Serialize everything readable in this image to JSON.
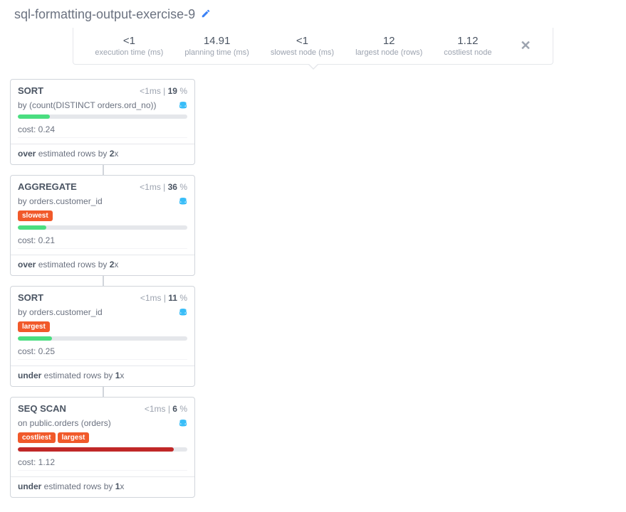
{
  "header": {
    "title": "sql-formatting-output-exercise-9",
    "stats": [
      {
        "value": "<1",
        "label": "execution time (ms)"
      },
      {
        "value": "14.91",
        "label": "planning time (ms)"
      },
      {
        "value": "<1",
        "label": "slowest node (ms)"
      },
      {
        "value": "12",
        "label": "largest node (rows)"
      },
      {
        "value": "1.12",
        "label": "costliest node"
      }
    ]
  },
  "nodes": [
    {
      "title": "SORT",
      "time": "<1",
      "time_unit": "ms",
      "pct": "19",
      "subtitle_prefix": "by",
      "subtitle": "(count(DISTINCT orders.ord_no))",
      "badges": [],
      "progress_pct": 19,
      "progress_color": "#4ade80",
      "cost_label": "cost:",
      "cost": "0.24",
      "estimate_prefix": "over",
      "estimate_mid": "estimated rows by",
      "estimate_factor": "2",
      "estimate_suffix": "x"
    },
    {
      "title": "AGGREGATE",
      "time": "<1",
      "time_unit": "ms",
      "pct": "36",
      "subtitle_prefix": "by",
      "subtitle": "orders.customer_id",
      "badges": [
        "slowest"
      ],
      "progress_pct": 17,
      "progress_color": "#4ade80",
      "cost_label": "cost:",
      "cost": "0.21",
      "estimate_prefix": "over",
      "estimate_mid": "estimated rows by",
      "estimate_factor": "2",
      "estimate_suffix": "x"
    },
    {
      "title": "SORT",
      "time": "<1",
      "time_unit": "ms",
      "pct": "11",
      "subtitle_prefix": "by",
      "subtitle": "orders.customer_id",
      "badges": [
        "largest"
      ],
      "progress_pct": 20,
      "progress_color": "#4ade80",
      "cost_label": "cost:",
      "cost": "0.25",
      "estimate_prefix": "under",
      "estimate_mid": "estimated rows by",
      "estimate_factor": "1",
      "estimate_suffix": "x"
    },
    {
      "title": "SEQ SCAN",
      "time": "<1",
      "time_unit": "ms",
      "pct": "6",
      "subtitle_prefix": "on",
      "subtitle": "public.orders (orders)",
      "badges": [
        "costliest",
        "largest"
      ],
      "progress_pct": 92,
      "progress_color": "#c02828",
      "cost_label": "cost:",
      "cost": "1.12",
      "estimate_prefix": "under",
      "estimate_mid": "estimated rows by",
      "estimate_factor": "1",
      "estimate_suffix": "x"
    }
  ],
  "colors": {
    "badge_bg": "#f1592a",
    "db_icon": "#38bdf8",
    "edit_icon": "#3b82f6"
  }
}
